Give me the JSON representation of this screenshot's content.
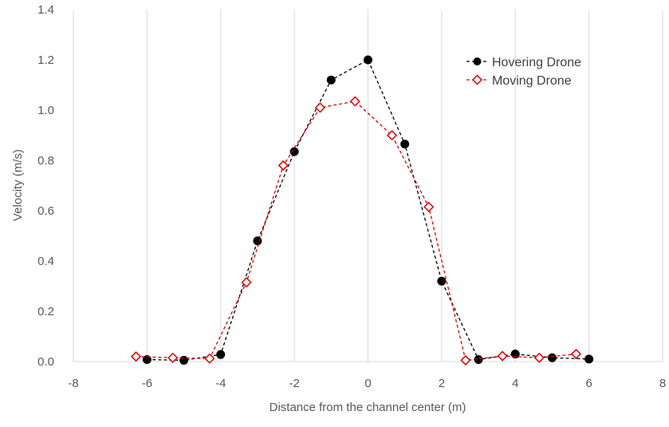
{
  "chart_data": {
    "type": "scatter",
    "title": "",
    "xlabel": "Distance from the channel center (m)",
    "ylabel": "Velocity (m/s)",
    "xlim": [
      -8,
      8
    ],
    "ylim": [
      0,
      1.4
    ],
    "xticks": [
      -8,
      -6,
      -4,
      -2,
      0,
      2,
      4,
      6,
      8
    ],
    "yticks": [
      0.0,
      0.2,
      0.4,
      0.6,
      0.8,
      1.0,
      1.2,
      1.4
    ],
    "xtick_labels": [
      "-8",
      "-6",
      "-4",
      "-2",
      "0",
      "2",
      "4",
      "6",
      "8"
    ],
    "ytick_labels": [
      "0.0",
      "0.2",
      "0.4",
      "0.6",
      "0.8",
      "1.0",
      "1.2",
      "1.4"
    ],
    "grid": "vertical",
    "legend_position": "top-right",
    "series": [
      {
        "name": "Hovering Drone",
        "color": "#000000",
        "marker": "filled-circle",
        "line": "dashed",
        "x": [
          -6,
          -5,
          -4,
          -3,
          -2,
          -1,
          0,
          1,
          2,
          3,
          4,
          5,
          6
        ],
        "y": [
          0.008,
          0.005,
          0.028,
          0.48,
          0.835,
          1.12,
          1.2,
          0.865,
          0.32,
          0.008,
          0.03,
          0.015,
          0.01
        ]
      },
      {
        "name": "Moving Drone",
        "color": "#e00000",
        "marker": "open-diamond",
        "line": "dashed",
        "x": [
          -6.3,
          -5.3,
          -4.3,
          -3.3,
          -2.3,
          -1.3,
          -0.35,
          0.65,
          1.65,
          2.65,
          3.65,
          4.65,
          5.65
        ],
        "y": [
          0.02,
          0.015,
          0.012,
          0.315,
          0.78,
          1.01,
          1.035,
          0.9,
          0.615,
          0.005,
          0.022,
          0.015,
          0.03
        ]
      }
    ]
  }
}
